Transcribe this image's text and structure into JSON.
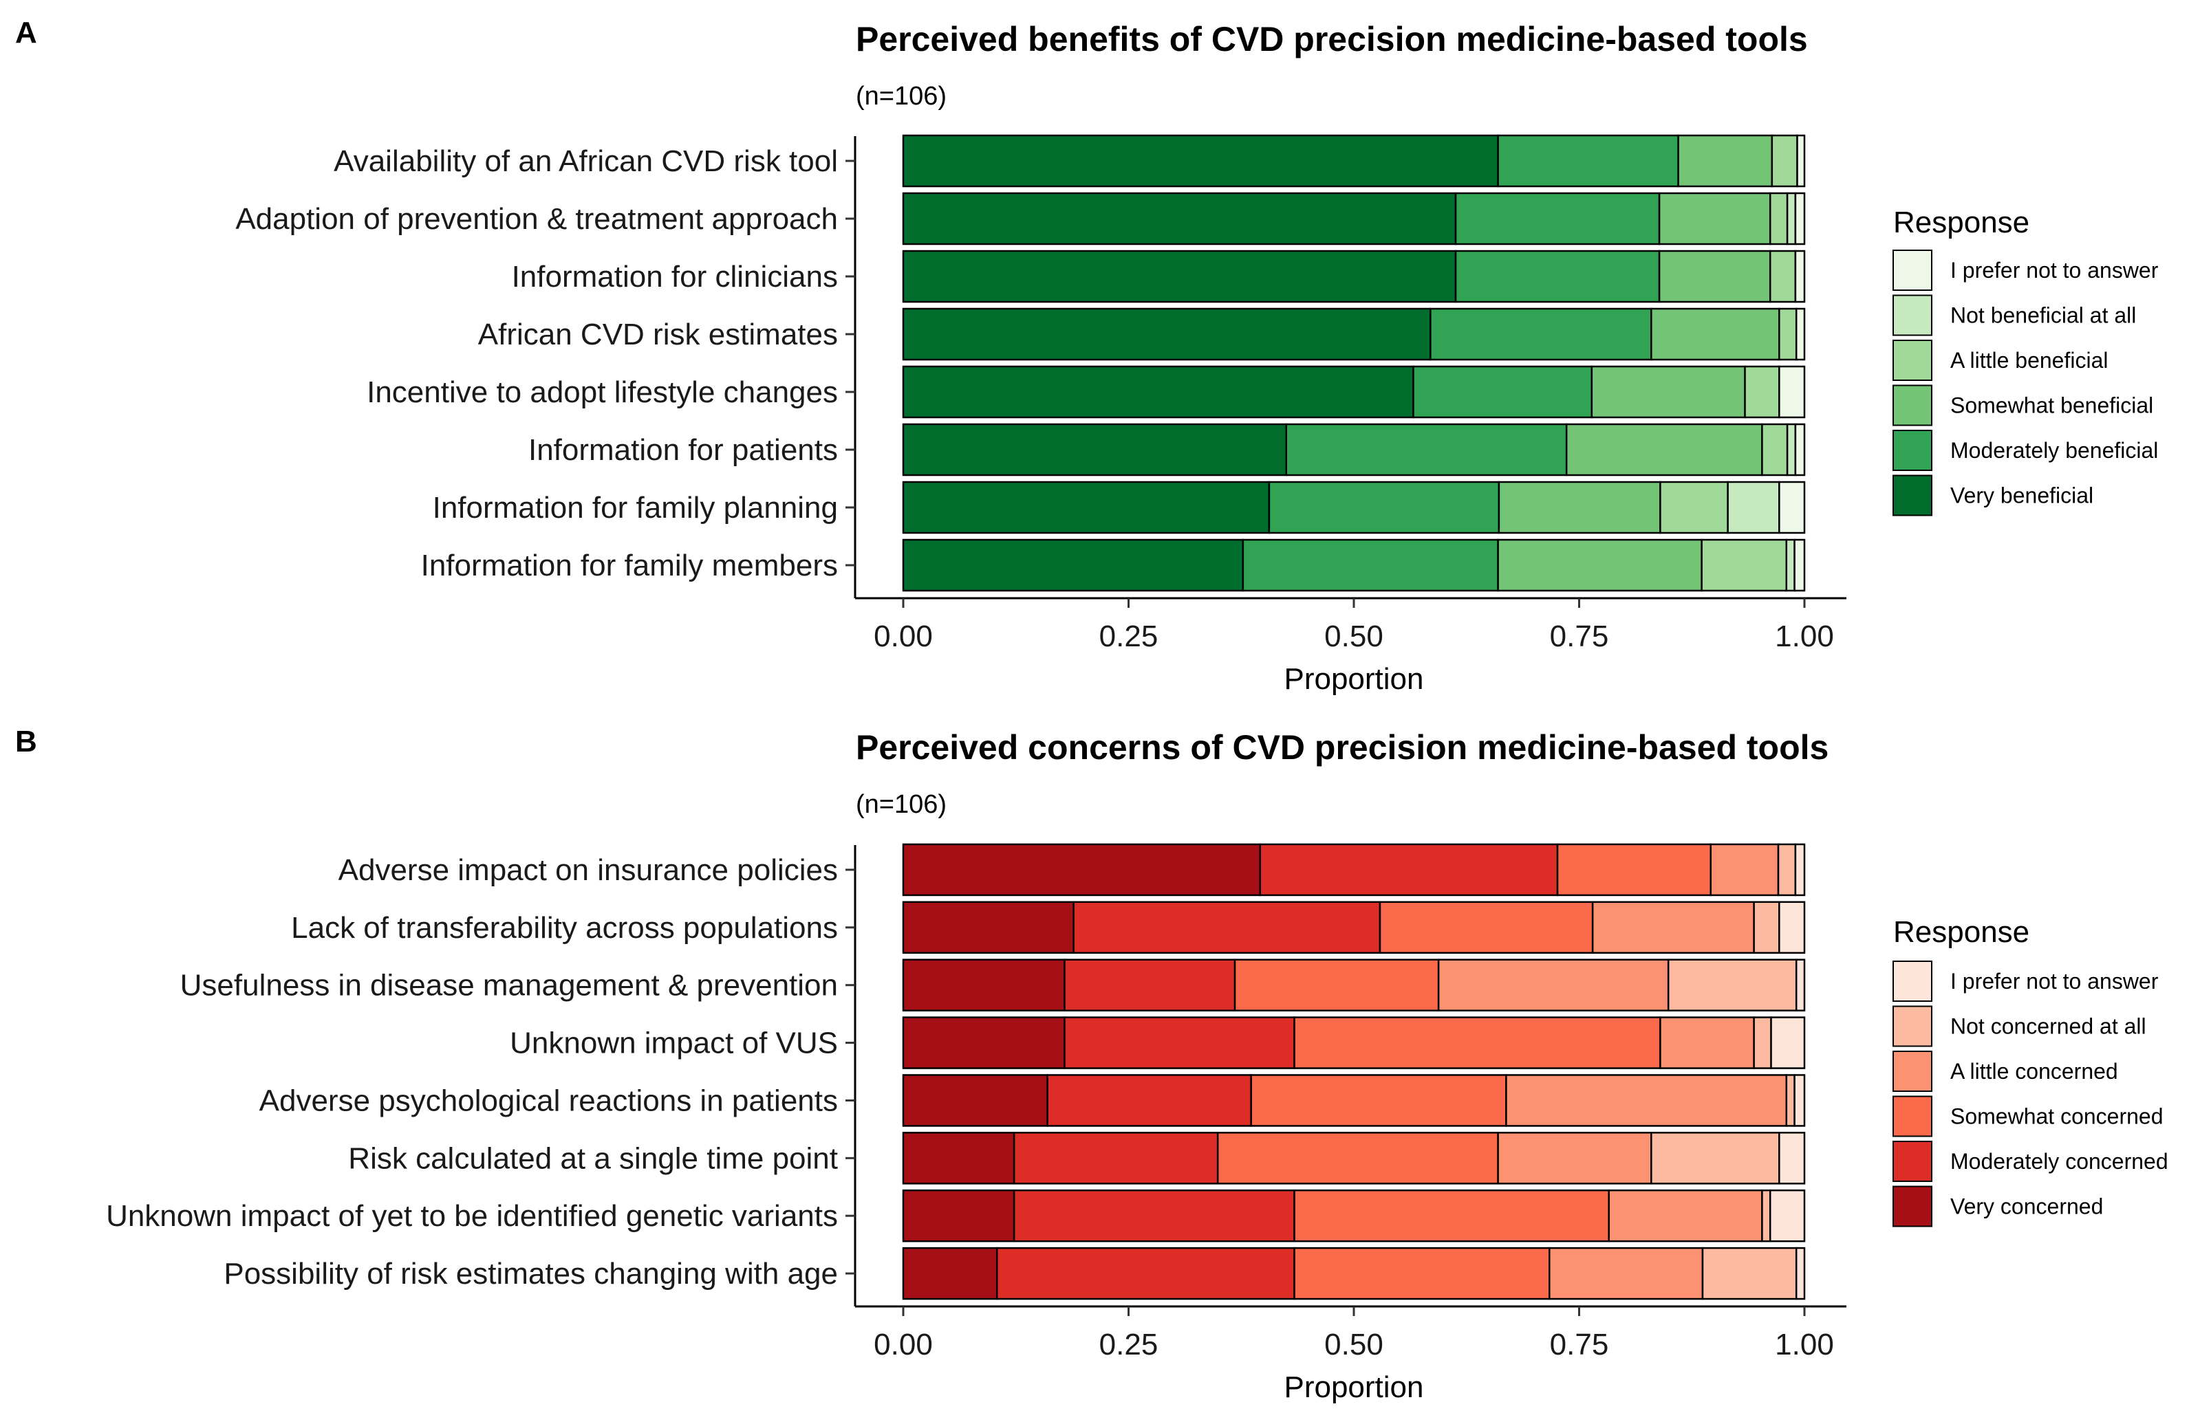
{
  "chart_data": [
    {
      "type": "bar",
      "orientation": "horizontal",
      "stacked": true,
      "panel_label": "A",
      "title": "Perceived benefits of CVD precision medicine-based tools",
      "subtitle": "(n=106)",
      "xlabel": "Proportion",
      "xlim": [
        0,
        1
      ],
      "xticks": [
        "0.00",
        "0.25",
        "0.50",
        "0.75",
        "1.00"
      ],
      "legend_title": "Response",
      "legend_position": "right",
      "categories": [
        "Availability of an African CVD risk tool",
        "Adaption of prevention & treatment approach",
        "Information for clinicians",
        "African CVD risk estimates",
        "Incentive to adopt lifestyle changes",
        "Information for patients",
        "Information for family planning",
        "Information for family members"
      ],
      "series": [
        {
          "name": "Very beneficial",
          "color": "#006d2c",
          "values": [
            0.66,
            0.613,
            0.613,
            0.585,
            0.566,
            0.425,
            0.406,
            0.377
          ]
        },
        {
          "name": "Moderately beneficial",
          "color": "#31a354",
          "values": [
            0.2,
            0.226,
            0.226,
            0.245,
            0.198,
            0.311,
            0.255,
            0.283
          ]
        },
        {
          "name": "Somewhat beneficial",
          "color": "#74c476",
          "values": [
            0.104,
            0.123,
            0.123,
            0.142,
            0.17,
            0.217,
            0.179,
            0.226
          ]
        },
        {
          "name": "A little beneficial",
          "color": "#a1d99b",
          "values": [
            0.028,
            0.019,
            0.028,
            0.019,
            0.038,
            0.028,
            0.075,
            0.094
          ]
        },
        {
          "name": "Not beneficial at all",
          "color": "#c7e9c0",
          "values": [
            0.0,
            0.009,
            0.0,
            0.0,
            0.0,
            0.009,
            0.057,
            0.009
          ]
        },
        {
          "name": "I prefer not to answer",
          "color": "#edf8e9",
          "values": [
            0.008,
            0.01,
            0.01,
            0.009,
            0.028,
            0.01,
            0.028,
            0.011
          ]
        }
      ]
    },
    {
      "type": "bar",
      "orientation": "horizontal",
      "stacked": true,
      "panel_label": "B",
      "title": "Perceived concerns of CVD precision medicine-based tools",
      "subtitle": "(n=106)",
      "xlabel": "Proportion",
      "xlim": [
        0,
        1
      ],
      "xticks": [
        "0.00",
        "0.25",
        "0.50",
        "0.75",
        "1.00"
      ],
      "legend_title": "Response",
      "legend_position": "right",
      "categories": [
        "Adverse impact on insurance policies",
        "Lack of transferability across populations",
        "Usefulness in disease management & prevention",
        "Unknown impact of VUS",
        "Adverse psychological reactions in patients",
        "Risk calculated at a single time point",
        "Unknown impact of yet to be identified genetic variants",
        "Possibility of risk estimates changing with age"
      ],
      "series": [
        {
          "name": "Very concerned",
          "color": "#a50f15",
          "values": [
            0.396,
            0.189,
            0.179,
            0.179,
            0.16,
            0.123,
            0.123,
            0.104
          ]
        },
        {
          "name": "Moderately concerned",
          "color": "#de2d26",
          "values": [
            0.33,
            0.34,
            0.189,
            0.255,
            0.226,
            0.226,
            0.311,
            0.33
          ]
        },
        {
          "name": "Somewhat concerned",
          "color": "#fb6a4a",
          "values": [
            0.17,
            0.236,
            0.226,
            0.406,
            0.283,
            0.311,
            0.349,
            0.283
          ]
        },
        {
          "name": "A little concerned",
          "color": "#fc9272",
          "values": [
            0.075,
            0.179,
            0.255,
            0.104,
            0.311,
            0.17,
            0.17,
            0.17
          ]
        },
        {
          "name": "Not concerned at all",
          "color": "#fcbba1",
          "values": [
            0.019,
            0.028,
            0.142,
            0.019,
            0.009,
            0.142,
            0.009,
            0.104
          ]
        },
        {
          "name": "I prefer not to answer",
          "color": "#fee5d9",
          "values": [
            0.01,
            0.028,
            0.009,
            0.037,
            0.011,
            0.028,
            0.038,
            0.009
          ]
        }
      ]
    }
  ]
}
